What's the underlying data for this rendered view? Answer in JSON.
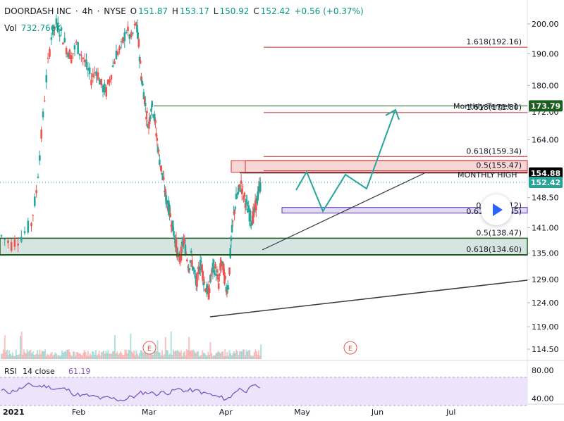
{
  "header": {
    "symbol": "DOORDASH INC",
    "interval": "4h",
    "exchange": "NYSE",
    "open_label": "O",
    "open": "151.87",
    "high_label": "H",
    "high": "153.17",
    "low_label": "L",
    "low": "150.92",
    "close_label": "C",
    "close": "152.42",
    "change": "+0.56 (+0.37%)",
    "vol_label": "Vol",
    "vol_value": "732.766K",
    "sep": "·"
  },
  "chart_data": {
    "type": "candlestick",
    "price_axis": {
      "scale": "log",
      "range": [
        113.0,
        206.0
      ],
      "ticks": [
        "200.00",
        "190.00",
        "180.00",
        "172.00",
        "164.00",
        "155.00",
        "148.50",
        "141.00",
        "135.00",
        "129.00",
        "124.00",
        "119.00",
        "114.50"
      ]
    },
    "time_axis": {
      "ticks": [
        "2021",
        "Feb",
        "Mar",
        "Apr",
        "May",
        "Jun",
        "Jul"
      ]
    },
    "price_labels": [
      {
        "text": "173.79",
        "value": 173.79,
        "color": "#1b5e20"
      },
      {
        "text": "154.88",
        "value": 154.88,
        "color": "#000000"
      },
      {
        "text": "152.42",
        "value": 152.42,
        "color": "#26a69a"
      }
    ],
    "fib_levels": [
      {
        "text": "1.618(192.16)",
        "value": 192.16
      },
      {
        "text": "1.618(171.80)",
        "value": 171.8
      },
      {
        "text": "0.618(159.34)",
        "value": 159.34
      },
      {
        "text": "0.5(155.47)",
        "value": 155.47
      },
      {
        "text": "0.5(138.47)",
        "value": 138.47
      },
      {
        "text": "0.618(134.60)",
        "value": 134.6
      }
    ],
    "fib_partial_labels": [
      "0.5(146.12)",
      "0.618(145.45)"
    ],
    "annotations": [
      {
        "text": "Monthly Target 1",
        "value": 173.79
      },
      {
        "text": "MONTHLY HIGH",
        "value": 154.88
      }
    ],
    "zones": [
      {
        "name": "resistance",
        "top": 158.2,
        "bottom": 155.1,
        "color": "#f7cfcf"
      },
      {
        "name": "mid",
        "top": 146.0,
        "bottom": 144.6,
        "color": "#d9d4f7"
      },
      {
        "name": "support",
        "top": 138.5,
        "bottom": 134.6,
        "color": "#cfe0dd"
      }
    ],
    "rsi": {
      "label": "RSI",
      "params": "14 close",
      "value": "61.19",
      "ticks": [
        "80.00",
        "40.00"
      ],
      "band": [
        30,
        70
      ]
    },
    "earnings_markers": [
      "E",
      "E"
    ]
  }
}
